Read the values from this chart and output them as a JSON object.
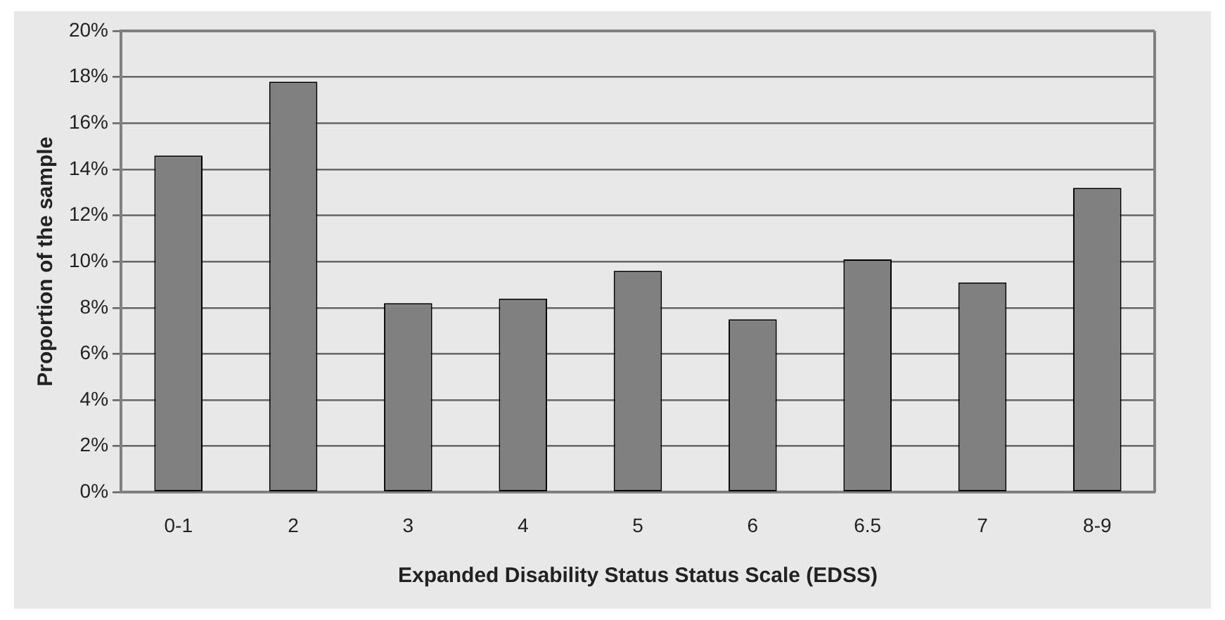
{
  "chart_data": {
    "type": "bar",
    "xlabel": "Expanded Disability Status Status Scale (EDSS)",
    "ylabel": "Proportion of the sample",
    "categories": [
      "0-1",
      "2",
      "3",
      "4",
      "5",
      "6",
      "6.5",
      "7",
      "8-9"
    ],
    "values": [
      14.6,
      17.8,
      8.2,
      8.4,
      9.6,
      7.5,
      10.1,
      9.1,
      13.2
    ],
    "color": "#808080",
    "ylim": [
      0,
      20
    ],
    "yticks": [
      {
        "value": 0,
        "label": "0%"
      },
      {
        "value": 2,
        "label": "2%"
      },
      {
        "value": 4,
        "label": "4%"
      },
      {
        "value": 6,
        "label": "6%"
      },
      {
        "value": 8,
        "label": "8%"
      },
      {
        "value": 10,
        "label": "10%"
      },
      {
        "value": 12,
        "label": "12%"
      },
      {
        "value": 14,
        "label": "14%"
      },
      {
        "value": 16,
        "label": "16%"
      },
      {
        "value": 18,
        "label": "18%"
      },
      {
        "value": 20,
        "label": "20%"
      }
    ],
    "grid": "y",
    "legend": false
  }
}
